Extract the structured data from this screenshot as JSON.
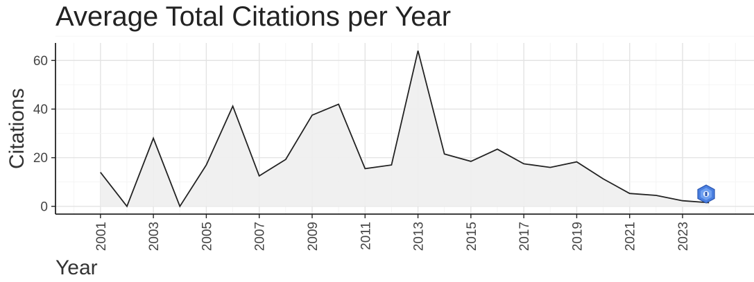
{
  "chart_data": {
    "type": "area",
    "title": "Average Total Citations per Year",
    "xlabel": "Year",
    "ylabel": "Citations",
    "x": [
      2001,
      2002,
      2003,
      2004,
      2005,
      2006,
      2007,
      2008,
      2009,
      2010,
      2011,
      2012,
      2013,
      2014,
      2015,
      2016,
      2017,
      2018,
      2019,
      2020,
      2021,
      2022,
      2023,
      2024
    ],
    "series": [
      {
        "values": [
          14,
          0,
          28,
          0,
          17,
          41.2,
          12.5,
          19.3,
          37.5,
          42,
          15.5,
          17,
          64,
          21.5,
          18.5,
          23.5,
          17.5,
          16,
          18.3,
          11.3,
          5.3,
          4.5,
          2.3,
          1.5
        ]
      }
    ],
    "x_ticks": [
      "2001",
      "2003",
      "2005",
      "2007",
      "2009",
      "2011",
      "2013",
      "2015",
      "2017",
      "2019",
      "2021",
      "2023"
    ],
    "y_ticks": [
      "0",
      "20",
      "40",
      "60"
    ],
    "xlim": [
      1999.3,
      2025.7
    ],
    "ylim": [
      -3.2,
      67.2
    ],
    "grid": true,
    "legend": "none",
    "colors": {
      "fill": "#eeeeee",
      "line": "#222222",
      "grid_major": "#e3e3e3",
      "grid_minor": "#f3f3f3",
      "axis": "#222222"
    }
  },
  "watermark": {
    "icon": "hexagon-logo-icon"
  }
}
